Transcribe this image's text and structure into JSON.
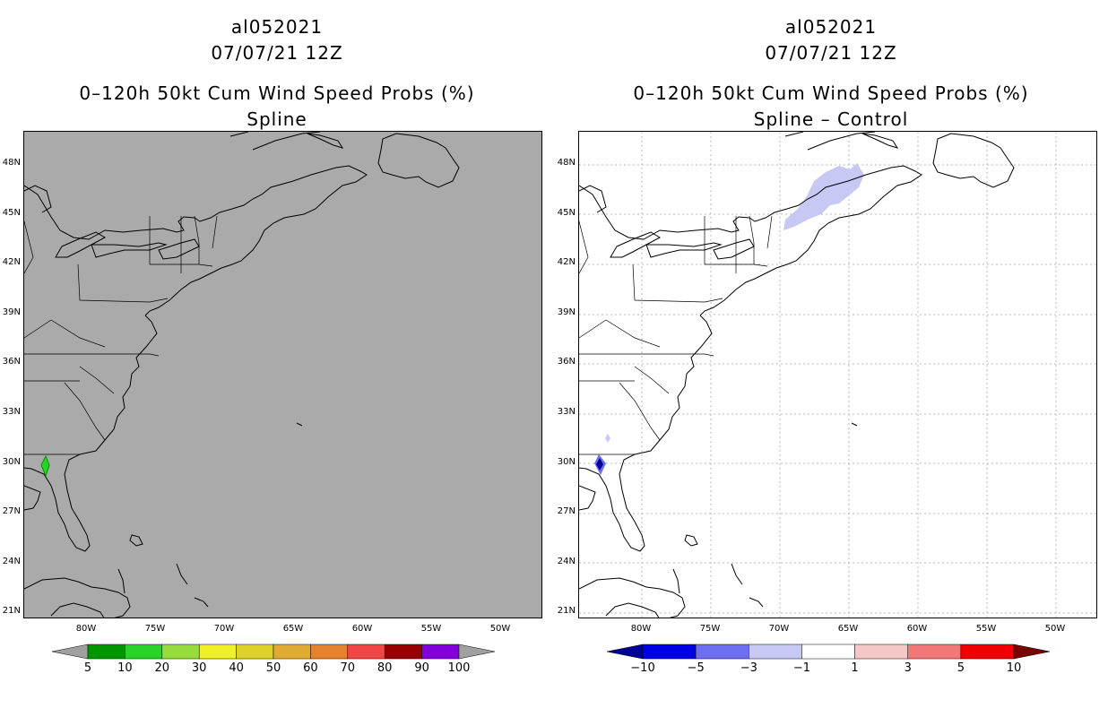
{
  "left_panel": {
    "storm_id": "al052021",
    "datetime": "07/07/21 12Z",
    "product": "0–120h 50kt Cum Wind Speed Probs (%)",
    "subtitle": "Spline",
    "background_color": "#aaaaaa"
  },
  "right_panel": {
    "storm_id": "al052021",
    "datetime": "07/07/21 12Z",
    "product": "0–120h 50kt Cum Wind Speed Probs (%)",
    "subtitle": "Spline – Control",
    "background_color": "#ffffff"
  },
  "axes": {
    "lat_labels": [
      "48N",
      "45N",
      "42N",
      "39N",
      "36N",
      "33N",
      "30N",
      "27N",
      "24N",
      "21N"
    ],
    "lon_labels": [
      "80W",
      "75W",
      "70W",
      "65W",
      "60W",
      "55W",
      "50W"
    ]
  },
  "left_colorbar": {
    "labels": [
      "5",
      "10",
      "20",
      "30",
      "40",
      "50",
      "60",
      "70",
      "80",
      "90",
      "100"
    ],
    "colors": [
      "#009600",
      "#28d228",
      "#96dc3c",
      "#f0f028",
      "#dcd228",
      "#e1aa32",
      "#e6822d",
      "#f04646",
      "#960000",
      "#8200dc"
    ],
    "end_color": "#a0a0a0"
  },
  "right_colorbar": {
    "labels": [
      "−10",
      "−5",
      "−3",
      "−1",
      "1",
      "3",
      "5",
      "10"
    ],
    "colors": [
      "#0000e6",
      "#6e6ef0",
      "#c8c8f5",
      "#ffffff",
      "#f5c8c8",
      "#f07878",
      "#f00000"
    ],
    "low_end_color": "#000096",
    "high_end_color": "#780000"
  },
  "probability_features": [
    {
      "panel": "left",
      "location": "NE Gulf coast",
      "value": "10"
    },
    {
      "panel": "right",
      "location": "NE Gulf coast",
      "value": "-10"
    },
    {
      "panel": "right",
      "location": "Maine",
      "value": "-3"
    }
  ]
}
